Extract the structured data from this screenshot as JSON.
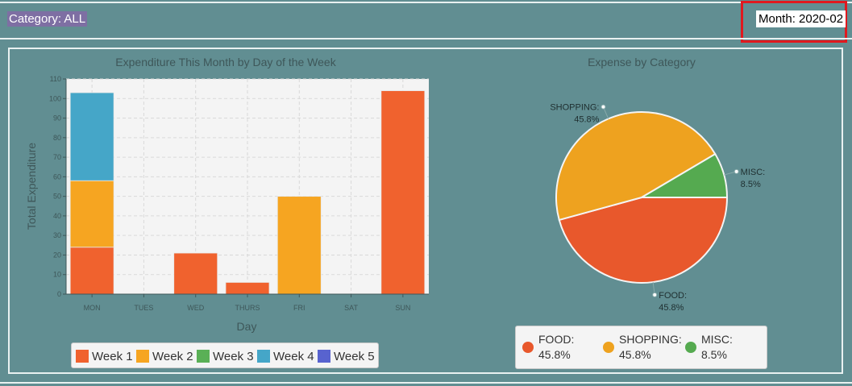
{
  "header": {
    "category_label": "Category: ALL",
    "month_label": "Month: 2020-02"
  },
  "chart_data": [
    {
      "type": "bar",
      "title": "Expenditure This Month by Day of the Week",
      "xlabel": "Day",
      "ylabel": "Total Expenditure",
      "ylim": [
        0,
        110
      ],
      "yticks": [
        0,
        10,
        20,
        30,
        40,
        50,
        60,
        70,
        80,
        90,
        100,
        110
      ],
      "stacked": true,
      "categories": [
        "MON",
        "TUES",
        "WED",
        "THURS",
        "FRI",
        "SAT",
        "SUN"
      ],
      "series": [
        {
          "name": "Week 1",
          "color": "#f0622e",
          "values": [
            24,
            0,
            21,
            6,
            0,
            0,
            104
          ]
        },
        {
          "name": "Week 2",
          "color": "#f6a521",
          "values": [
            34,
            0,
            0,
            0,
            50,
            0,
            0
          ]
        },
        {
          "name": "Week 3",
          "color": "#5ab056",
          "values": [
            0,
            0,
            0,
            0,
            0,
            0,
            0
          ]
        },
        {
          "name": "Week 4",
          "color": "#45a6c8",
          "values": [
            45,
            0,
            0,
            0,
            0,
            0,
            0
          ]
        },
        {
          "name": "Week 5",
          "color": "#5863cf",
          "values": [
            0,
            0,
            0,
            0,
            0,
            0,
            0
          ]
        }
      ],
      "grid": true,
      "legend_position": "bottom"
    },
    {
      "type": "pie",
      "title": "Expense by Category",
      "slices": [
        {
          "label": "FOOD",
          "value": 45.8,
          "pct_text": "45.8%",
          "color": "#e8582c"
        },
        {
          "label": "SHOPPING",
          "value": 45.8,
          "pct_text": "45.8%",
          "color": "#eea21f"
        },
        {
          "label": "MISC",
          "value": 8.5,
          "pct_text": "8.5%",
          "color": "#55aa50"
        }
      ],
      "legend_position": "bottom"
    }
  ]
}
